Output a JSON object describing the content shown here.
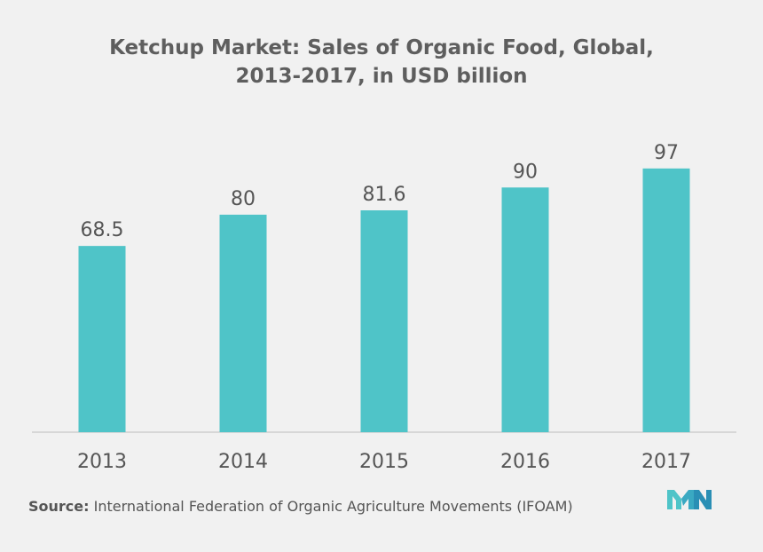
{
  "chart_data": {
    "type": "bar",
    "title_line1": "Ketchup Market: Sales of Organic Food, Global,",
    "title_line2": "2013-2017, in USD billion",
    "categories": [
      "2013",
      "2014",
      "2015",
      "2016",
      "2017"
    ],
    "values": [
      68.5,
      80,
      81.6,
      90,
      97
    ],
    "value_labels": [
      "68.5",
      "80",
      "81.6",
      "90",
      "97"
    ],
    "xlabel": "",
    "ylabel": "",
    "ylim": [
      0,
      110
    ],
    "grid": false,
    "bar_color": "#4fc4c8"
  },
  "source": {
    "label": "Source:",
    "text": "International Federation of Organic Agriculture Movements (IFOAM)"
  },
  "logo": {
    "icon": "mordor-intelligence-logo-icon",
    "colors": [
      "#4fc4c8",
      "#2a6f9a"
    ]
  }
}
